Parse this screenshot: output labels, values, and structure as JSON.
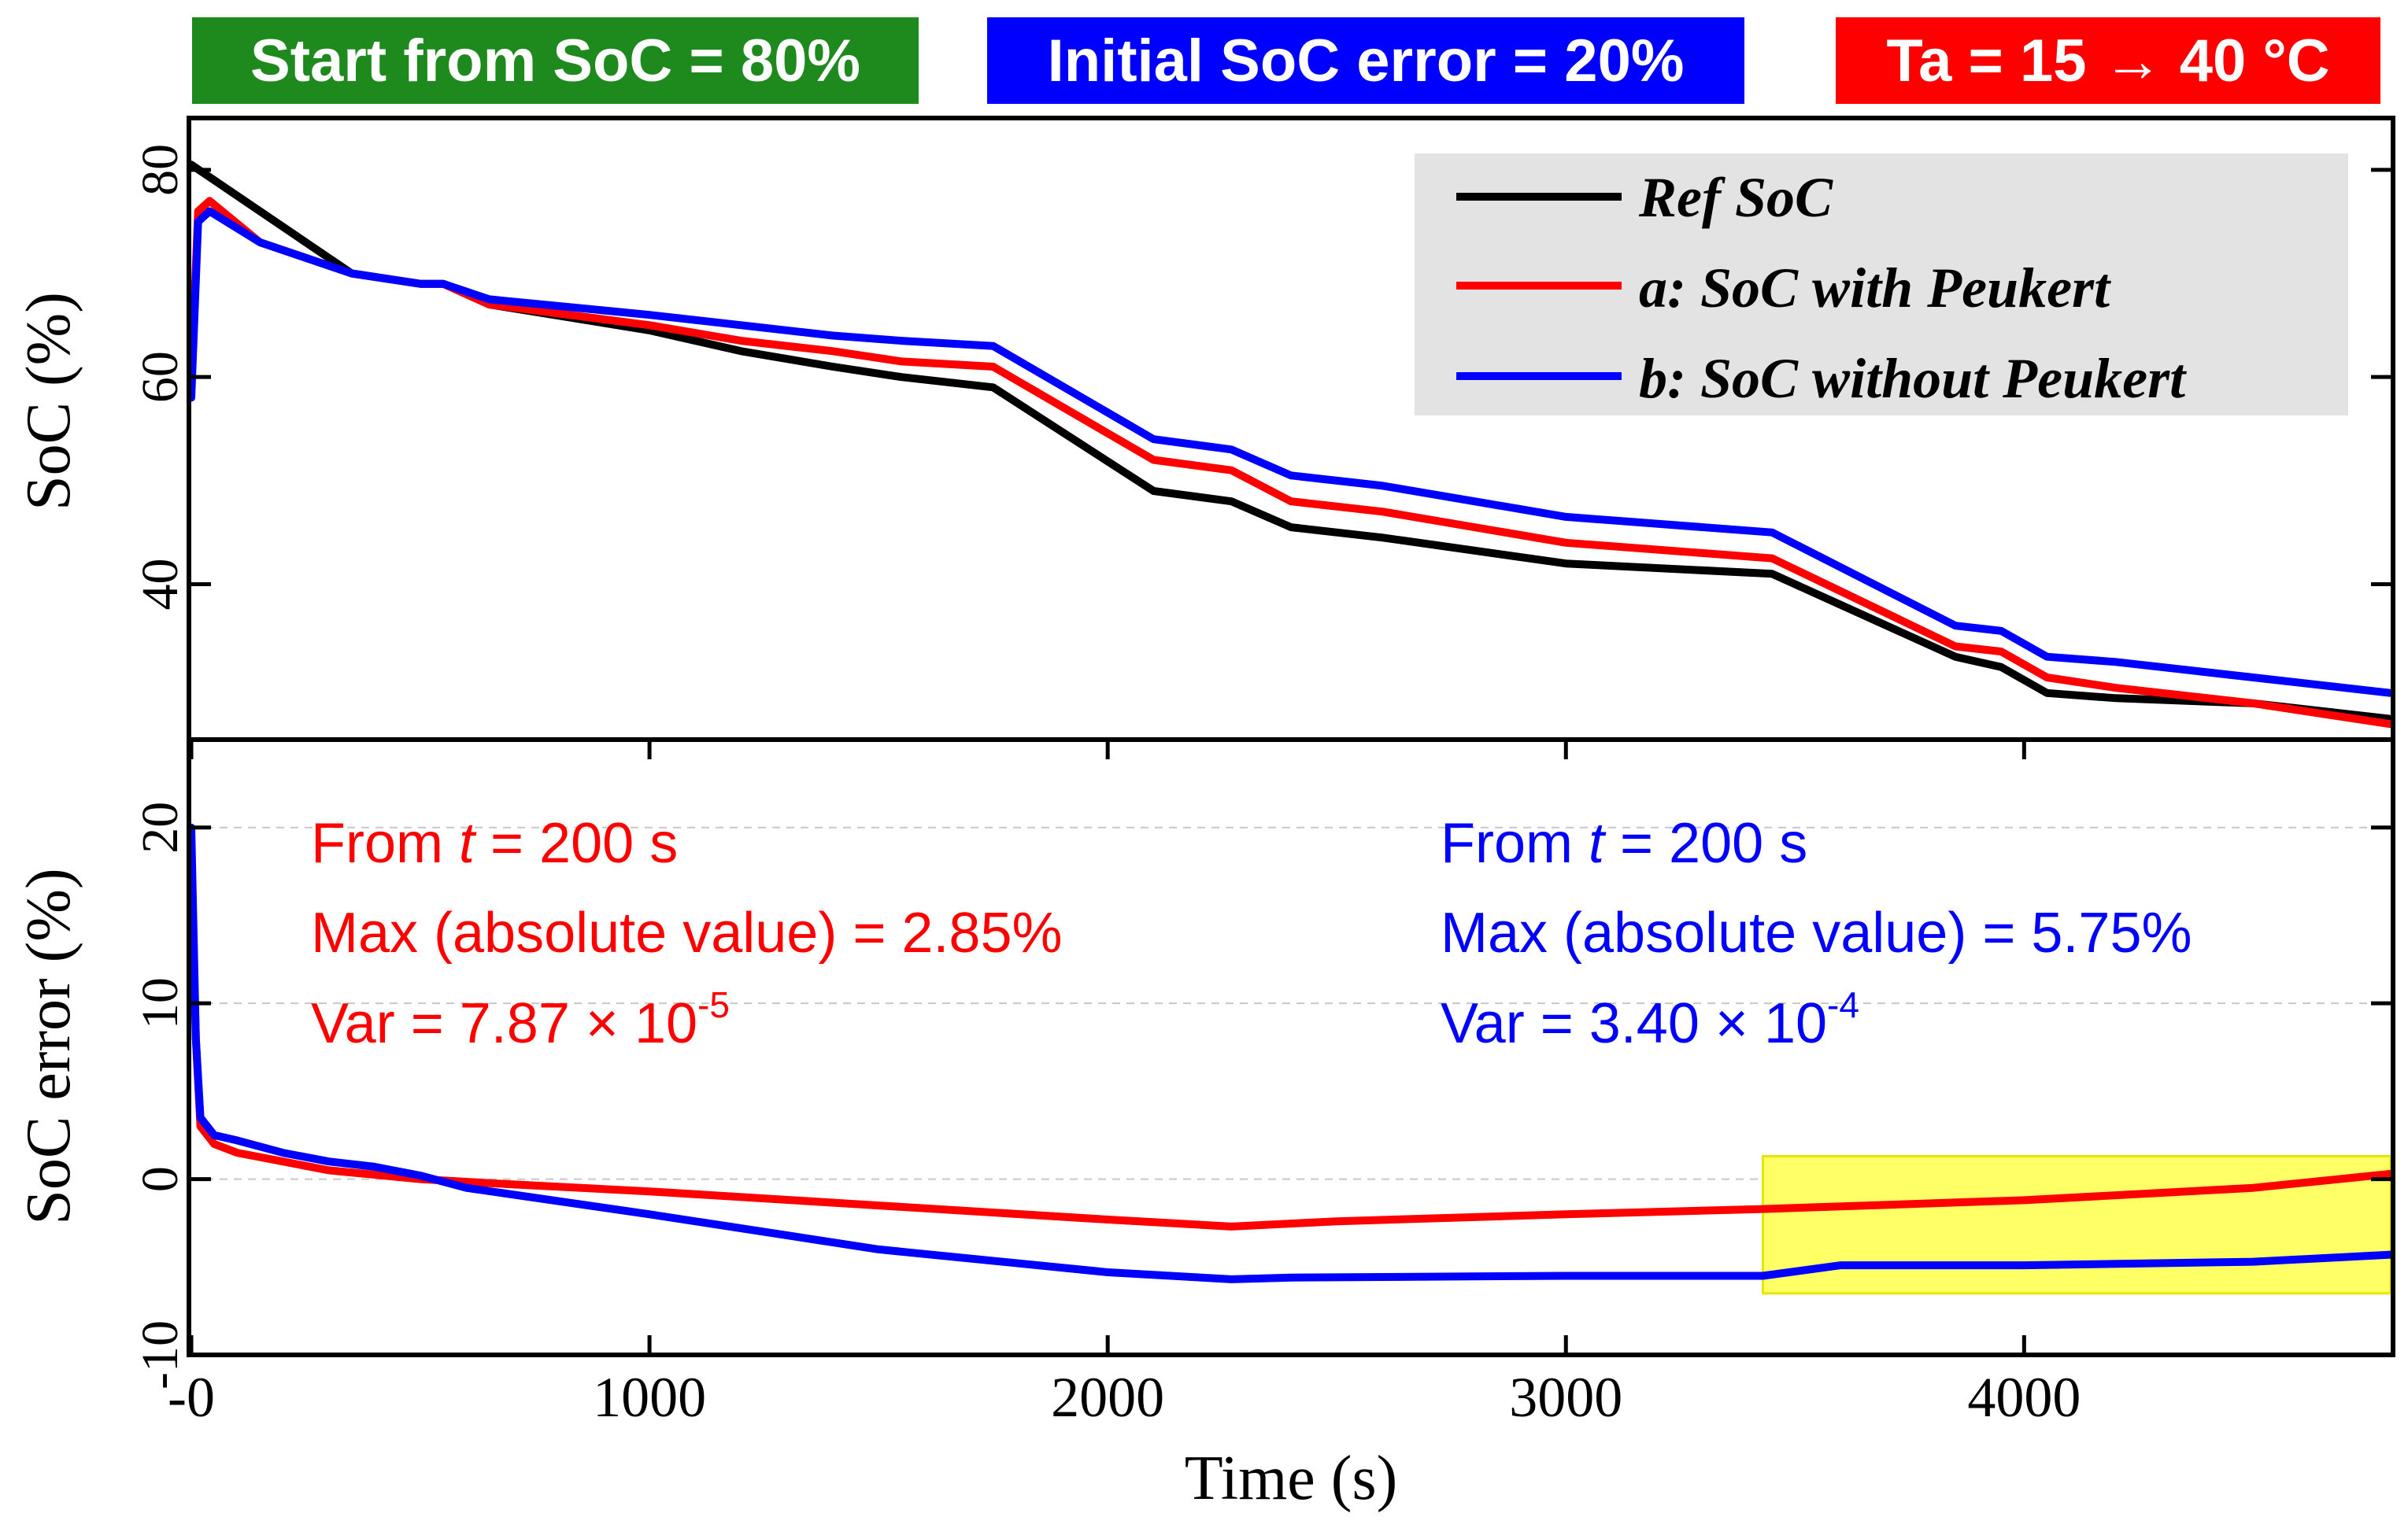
{
  "banners": {
    "start": {
      "text": "Start from SoC = 80%",
      "color": "#1e8a1e"
    },
    "initial_error": {
      "text": "Initial SoC error = 20%",
      "color": "#0000ff"
    },
    "temperature": {
      "text": "Ta = 15 → 40 °C",
      "color": "#ff0000"
    }
  },
  "chart_data": [
    {
      "type": "line",
      "ylabel": "SoC (%)",
      "xlim": [
        0,
        4800
      ],
      "ylim": [
        25,
        85
      ],
      "yticks": [
        40,
        60,
        80
      ],
      "ytick_labels": [
        "40",
        "60",
        "80"
      ],
      "legend": {
        "placement": "top-right",
        "background": "#e3e3e3"
      },
      "series": [
        {
          "name": "Ref SoC",
          "color": "#000000",
          "x": [
            0,
            50,
            350,
            500,
            550,
            650,
            1000,
            1200,
            1400,
            1550,
            1750,
            2100,
            2270,
            2400,
            2600,
            3000,
            3450,
            3850,
            3950,
            4050,
            4200,
            4500,
            4800
          ],
          "y": [
            80.5,
            79,
            70,
            69,
            69,
            67,
            64.5,
            62.5,
            61,
            60,
            59,
            49,
            48,
            45.5,
            44.5,
            42,
            41,
            33,
            32,
            29.5,
            29,
            28.5,
            27
          ]
        },
        {
          "name": "a: SoC with Peukert",
          "color": "#ff0000",
          "x": [
            0,
            15,
            40,
            150,
            350,
            500,
            550,
            650,
            1000,
            1200,
            1400,
            1550,
            1750,
            2100,
            2270,
            2400,
            2600,
            3000,
            3450,
            3850,
            3950,
            4050,
            4200,
            4500,
            4800
          ],
          "y": [
            60,
            76,
            77,
            73,
            70,
            69,
            69,
            67,
            65,
            63.5,
            62.5,
            61.5,
            61,
            52,
            51,
            48,
            47,
            44,
            42.5,
            34,
            33.5,
            31,
            30,
            28.5,
            26.5
          ]
        },
        {
          "name": "b: SoC without Peukert",
          "color": "#0000ff",
          "x": [
            0,
            15,
            40,
            150,
            350,
            500,
            550,
            650,
            1000,
            1200,
            1400,
            1550,
            1750,
            2100,
            2270,
            2400,
            2600,
            3000,
            3450,
            3850,
            3950,
            4050,
            4200,
            4500,
            4800
          ],
          "y": [
            58,
            75,
            76,
            73,
            70,
            69,
            69,
            67.5,
            66,
            65,
            64,
            63.5,
            63,
            54,
            53,
            50.5,
            49.5,
            46.5,
            45,
            36,
            35.5,
            33,
            32.5,
            31,
            29.5
          ]
        }
      ]
    },
    {
      "type": "line",
      "xlabel": "Time (s)",
      "ylabel": "SoC error (%)",
      "xlim": [
        0,
        4800
      ],
      "ylim": [
        -10,
        25
      ],
      "xticks": [
        0,
        1000,
        2000,
        3000,
        4000
      ],
      "xtick_labels": [
        "-0",
        "1000",
        "2000",
        "3000",
        "4000"
      ],
      "yticks": [
        -10,
        0,
        10,
        20
      ],
      "ytick_labels": [
        "-10",
        "0",
        "10",
        "20"
      ],
      "highlight": {
        "x0": 3430,
        "x1": 4800,
        "y0": -6.5,
        "y1": 1.3,
        "color": "#ffff66"
      },
      "series": [
        {
          "name": "a: SoC with Peukert",
          "color": "#ff0000",
          "x": [
            0,
            10,
            20,
            50,
            100,
            200,
            300,
            500,
            700,
            1000,
            1500,
            2000,
            2270,
            2500,
            3000,
            3430,
            4000,
            4500,
            4800
          ],
          "y": [
            18,
            8,
            3,
            2,
            1.5,
            1,
            0.5,
            0,
            -0.3,
            -0.7,
            -1.5,
            -2.3,
            -2.7,
            -2.4,
            -2,
            -1.7,
            -1.2,
            -0.5,
            0.3
          ]
        },
        {
          "name": "b: SoC without Peukert",
          "color": "#0000ff",
          "x": [
            0,
            10,
            20,
            50,
            100,
            200,
            300,
            400,
            500,
            600,
            1000,
            1500,
            2000,
            2270,
            2400,
            3000,
            3430,
            3600,
            4000,
            4500,
            4800
          ],
          "y": [
            20,
            8,
            3.5,
            2.5,
            2.2,
            1.5,
            1,
            0.7,
            0.2,
            -0.5,
            -2,
            -4,
            -5.3,
            -5.7,
            -5.6,
            -5.5,
            -5.5,
            -4.9,
            -4.9,
            -4.7,
            -4.3
          ]
        }
      ],
      "annotations": [
        {
          "color": "#ff0000",
          "line1_pre": "From ",
          "line1_var": "t",
          "line1_post": " = 200 s",
          "line2": "Max (absolute value) = 2.85%",
          "line3_base": "Var = 7.87 × 10",
          "line3_exp": "-5"
        },
        {
          "color": "#0000ff",
          "line1_pre": "From ",
          "line1_var": "t",
          "line1_post": " = 200 s",
          "line2": "Max (absolute value) = 5.75%",
          "line3_base": "Var = 3.40 × 10",
          "line3_exp": "-4"
        }
      ]
    }
  ]
}
